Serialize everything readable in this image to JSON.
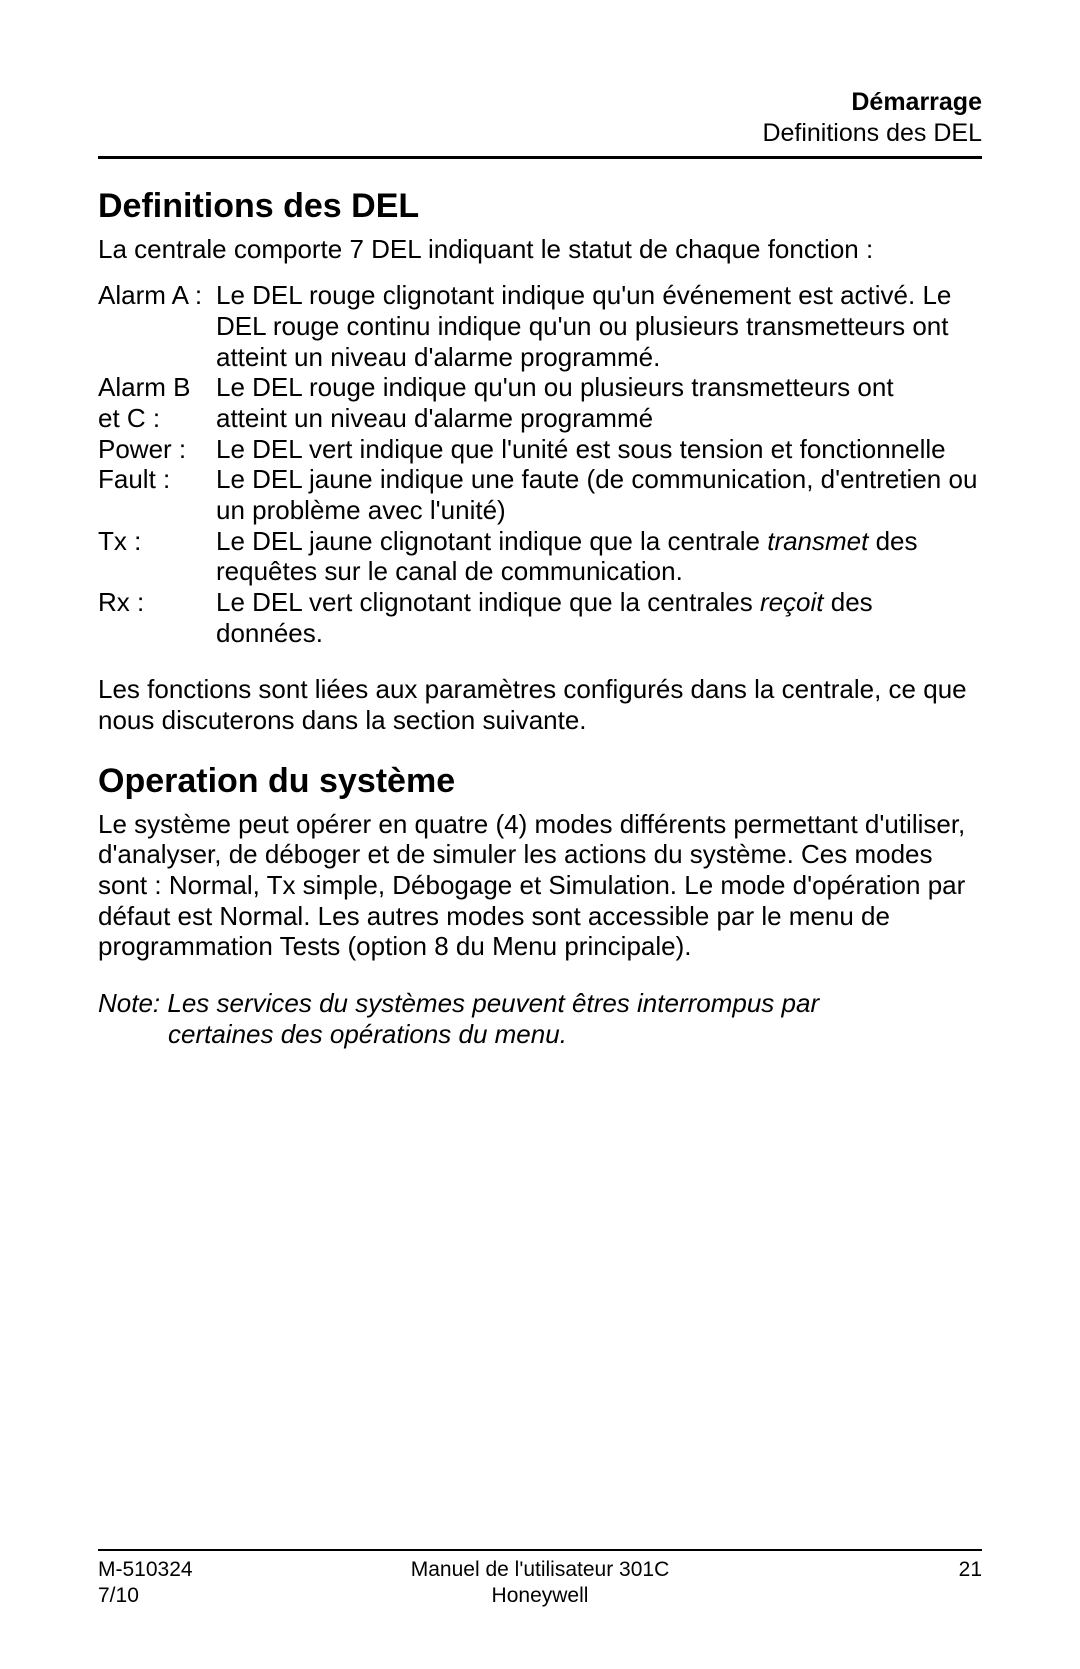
{
  "header": {
    "chapter": "Démarrage",
    "section": "Definitions des DEL"
  },
  "section1": {
    "title": "Definitions des DEL",
    "intro": "La centrale comporte 7 DEL indiquant le statut de chaque fonction :",
    "defs": {
      "alarmA": {
        "term": "Alarm A :",
        "desc": "Le DEL rouge clignotant indique qu'un événement est activé. Le DEL rouge continu indique qu'un ou plusieurs transmetteurs ont atteint un niveau d'alarme programmé."
      },
      "alarmBC": {
        "term1": "Alarm B",
        "term2": "et C :",
        "desc1": "Le DEL rouge indique qu'un ou plusieurs transmetteurs ont",
        "desc2": "atteint un niveau d'alarme programmé"
      },
      "power": {
        "term": "Power :",
        "desc": "Le DEL vert indique que l'unité est sous tension et fonctionnelle"
      },
      "fault": {
        "term": "Fault :",
        "desc": "Le DEL jaune indique une faute (de communication, d'entretien ou un problème avec l'unité)"
      },
      "tx": {
        "term": "Tx :",
        "desc_pre": "Le DEL jaune clignotant indique que la centrale ",
        "desc_em": "transmet",
        "desc_post": " des requêtes sur le canal de communication."
      },
      "rx": {
        "term": "Rx :",
        "desc_pre": "Le DEL vert clignotant indique que la centrales ",
        "desc_em": "reçoit",
        "desc_post": " des données."
      }
    },
    "outro": "Les fonctions sont liées aux paramètres configurés dans la centrale, ce que nous discuterons dans la section suivante."
  },
  "section2": {
    "title": "Operation du système",
    "para": "Le système peut opérer en quatre (4) modes différents permettant d'utiliser, d'analyser, de déboger et de simuler les actions du système. Ces modes sont : Normal, Tx simple, Débogage et Simulation.  Le mode d'opération par défaut est Normal.  Les autres modes sont accessible par le menu de programmation Tests (option 8 du Menu principale).",
    "note_l1": "Note: Les services du systèmes peuvent êtres interrompus par",
    "note_l2": "certaines des opérations du menu."
  },
  "footer": {
    "doc_id": "M-510324",
    "manual": "Manuel  de l'utilisateur  301C",
    "page": "21",
    "date": "7/10",
    "brand": "Honeywell"
  }
}
